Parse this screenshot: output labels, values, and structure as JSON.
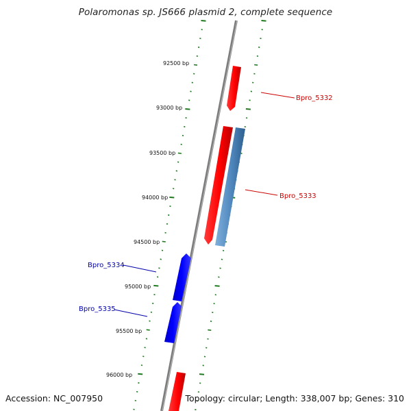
{
  "title": "Polaromonas sp. JS666 plasmid 2, complete sequence",
  "footer": {
    "accession": "Accession: NC_007950",
    "summary": "Topology: circular; Length: 338,007 bp; Genes: 310"
  },
  "colors": {
    "backbone": "#8c8c8c",
    "tick": "#1f7a1f",
    "forward_gene": "#ff0000",
    "forward_gene_alt": "#5b8fc0",
    "reverse_gene": "#0000ee",
    "forward_label": "#cc0000",
    "reverse_label": "#0000aa"
  },
  "tick_labels": [
    {
      "bp": 92500,
      "text": "92500 bp"
    },
    {
      "bp": 93000,
      "text": "93000 bp"
    },
    {
      "bp": 93500,
      "text": "93500 bp"
    },
    {
      "bp": 94000,
      "text": "94000 bp"
    },
    {
      "bp": 94500,
      "text": "94500 bp"
    },
    {
      "bp": 95000,
      "text": "95000 bp"
    },
    {
      "bp": 95500,
      "text": "95500 bp"
    },
    {
      "bp": 96000,
      "text": "96000 bp"
    }
  ],
  "genes": [
    {
      "id": "Bpro_5332",
      "strand": "forward",
      "color": "forward_gene",
      "label": "Bpro_5332"
    },
    {
      "id": "Bpro_5333a",
      "strand": "forward",
      "color": "forward_gene",
      "label": ""
    },
    {
      "id": "Bpro_5333",
      "strand": "forward",
      "color": "forward_gene_alt",
      "label": "Bpro_5333"
    },
    {
      "id": "Bpro_5334",
      "strand": "reverse",
      "color": "reverse_gene",
      "label": "Bpro_5334"
    },
    {
      "id": "Bpro_5335",
      "strand": "reverse",
      "color": "reverse_gene",
      "label": "Bpro_5335"
    },
    {
      "id": "bottom-gene",
      "strand": "forward",
      "color": "forward_gene",
      "label": ""
    }
  ]
}
